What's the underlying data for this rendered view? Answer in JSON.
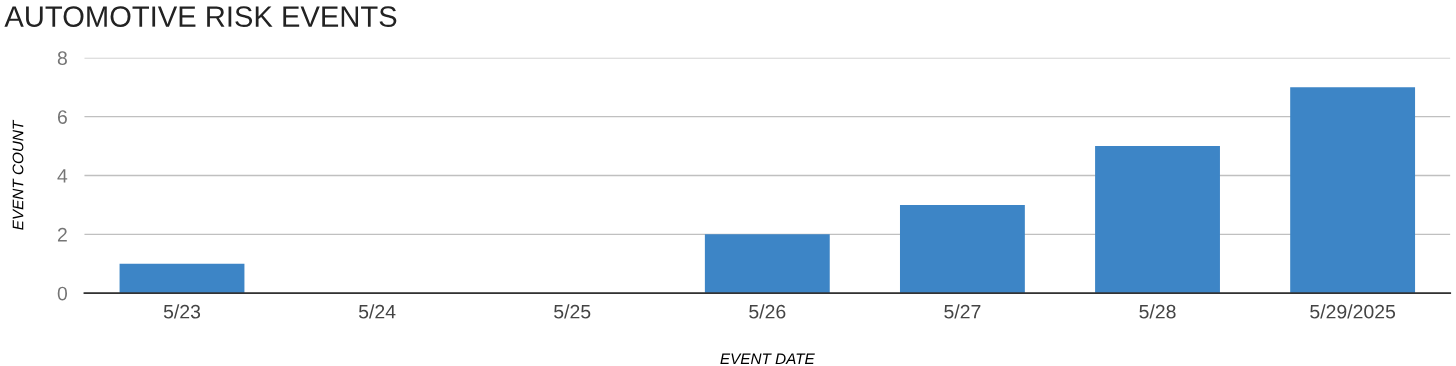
{
  "chart_data": {
    "type": "bar",
    "title": "AUTOMOTIVE RISK EVENTS",
    "xlabel": "EVENT DATE",
    "ylabel": "EVENT COUNT",
    "categories": [
      "5/23",
      "5/24",
      "5/25",
      "5/26",
      "5/27",
      "5/28",
      "5/29/2025"
    ],
    "values": [
      1,
      0,
      0,
      2,
      3,
      5,
      7
    ],
    "color": "#3d85c6",
    "ylim": [
      0,
      8
    ],
    "yticks": [
      0,
      2,
      4,
      6,
      8
    ],
    "grid": "y",
    "legend": false
  }
}
